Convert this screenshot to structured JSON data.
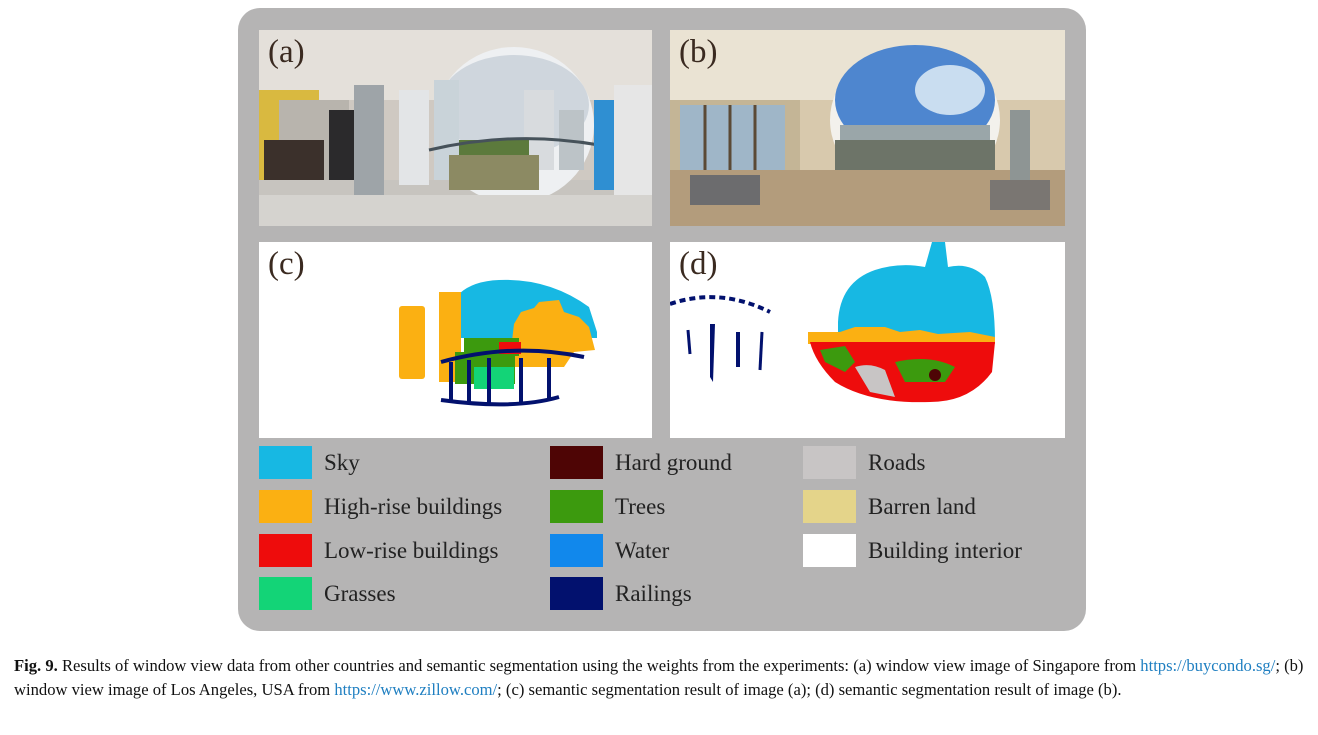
{
  "panels": {
    "a": {
      "label": "(a)"
    },
    "b": {
      "label": "(b)"
    },
    "c": {
      "label": "(c)"
    },
    "d": {
      "label": "(d)"
    }
  },
  "legend": [
    {
      "label": "Sky",
      "color": "#17b8e3"
    },
    {
      "label": "High-rise buildings",
      "color": "#fbb012"
    },
    {
      "label": "Low-rise buildings",
      "color": "#ee0c0c"
    },
    {
      "label": "Grasses",
      "color": "#13d477"
    },
    {
      "label": "Hard ground",
      "color": "#4e0505"
    },
    {
      "label": "Trees",
      "color": "#3c9a0e"
    },
    {
      "label": "Water",
      "color": "#1188ec"
    },
    {
      "label": "Railings",
      "color": "#02116e"
    },
    {
      "label": "Roads",
      "color": "#c8c5c5"
    },
    {
      "label": "Barren land",
      "color": "#e4d48a"
    },
    {
      "label": "Building interior",
      "color": "#ffffff"
    }
  ],
  "caption": {
    "fig_label": "Fig. 9.",
    "text_1": " Results of window view data from other countries and semantic segmentation using the weights from the experiments: (a) window view image of Singapore from ",
    "link_1": "https://buycondo.sg/",
    "text_2": "; (b) window view image of Los Angeles, USA from ",
    "link_2": "https://www.zillow.com/",
    "text_3": "; (c) semantic segmentation result of image (a); (d) semantic segmentation result of image (b)."
  }
}
